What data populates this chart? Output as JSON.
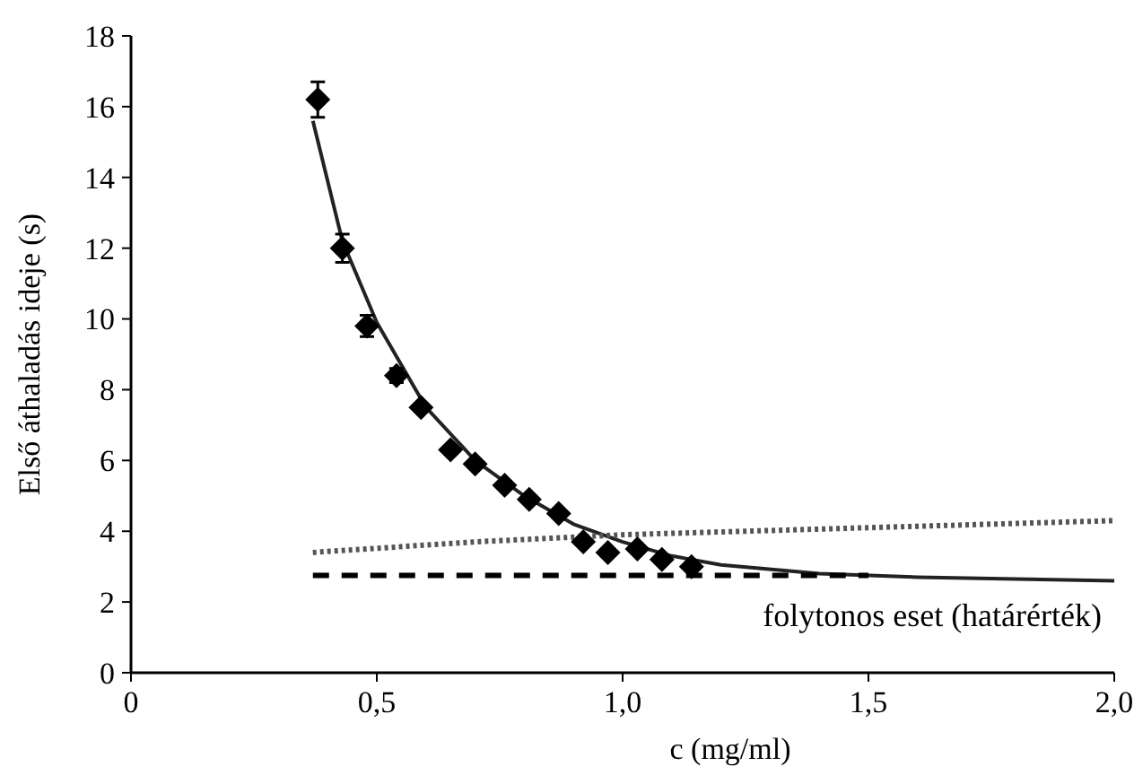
{
  "chart_data": {
    "type": "scatter",
    "xlabel": "c (mg/ml)",
    "ylabel": "Első áthaladás ideje (s)",
    "xlim": [
      0,
      2.0
    ],
    "ylim": [
      0,
      18
    ],
    "xticks": [
      0,
      {
        "value": 0.5,
        "label": "0,5"
      },
      {
        "value": 1.0,
        "label": "1,0"
      },
      {
        "value": 1.5,
        "label": "1,5"
      },
      {
        "value": 2.0,
        "label": "2,0"
      }
    ],
    "yticks": [
      0,
      2,
      4,
      6,
      8,
      10,
      12,
      14,
      16,
      18
    ],
    "grid": false,
    "series": [
      {
        "marker": "diamond",
        "color": "#000000",
        "x": [
          0.38,
          0.43,
          0.48,
          0.54,
          0.59,
          0.65,
          0.7,
          0.76,
          0.81,
          0.87,
          0.92,
          0.97,
          1.03,
          1.08,
          1.14
        ],
        "values": [
          16.2,
          12.0,
          9.8,
          8.4,
          7.5,
          6.3,
          5.9,
          5.3,
          4.9,
          4.5,
          3.7,
          3.4,
          3.5,
          3.2,
          3.0
        ],
        "errors": [
          0.5,
          0.4,
          0.3,
          0.2,
          null,
          null,
          null,
          null,
          null,
          null,
          null,
          null,
          null,
          null,
          null
        ]
      },
      {
        "type": "line",
        "line_style": "solid",
        "color": "#222222",
        "x": [
          0.37,
          0.43,
          0.5,
          0.6,
          0.7,
          0.8,
          0.9,
          1.0,
          1.1,
          1.2,
          1.4,
          1.6,
          1.8,
          2.0
        ],
        "values": [
          15.6,
          12.2,
          9.9,
          7.5,
          6.0,
          5.0,
          4.2,
          3.7,
          3.3,
          3.05,
          2.8,
          2.7,
          2.65,
          2.6
        ]
      },
      {
        "type": "line",
        "line_style": "dotted",
        "color": "#555555",
        "x": [
          0.37,
          0.7,
          1.0,
          1.5,
          2.0
        ],
        "values": [
          3.4,
          3.7,
          3.9,
          4.1,
          4.3
        ]
      },
      {
        "type": "line",
        "line_style": "dashed",
        "color": "#000000",
        "x": [
          0.37,
          1.5
        ],
        "values": [
          2.75,
          2.75
        ]
      }
    ],
    "annotations": [
      {
        "text": "folytonos eset (határérték)",
        "x": 1.5,
        "y": 2.75
      }
    ]
  }
}
